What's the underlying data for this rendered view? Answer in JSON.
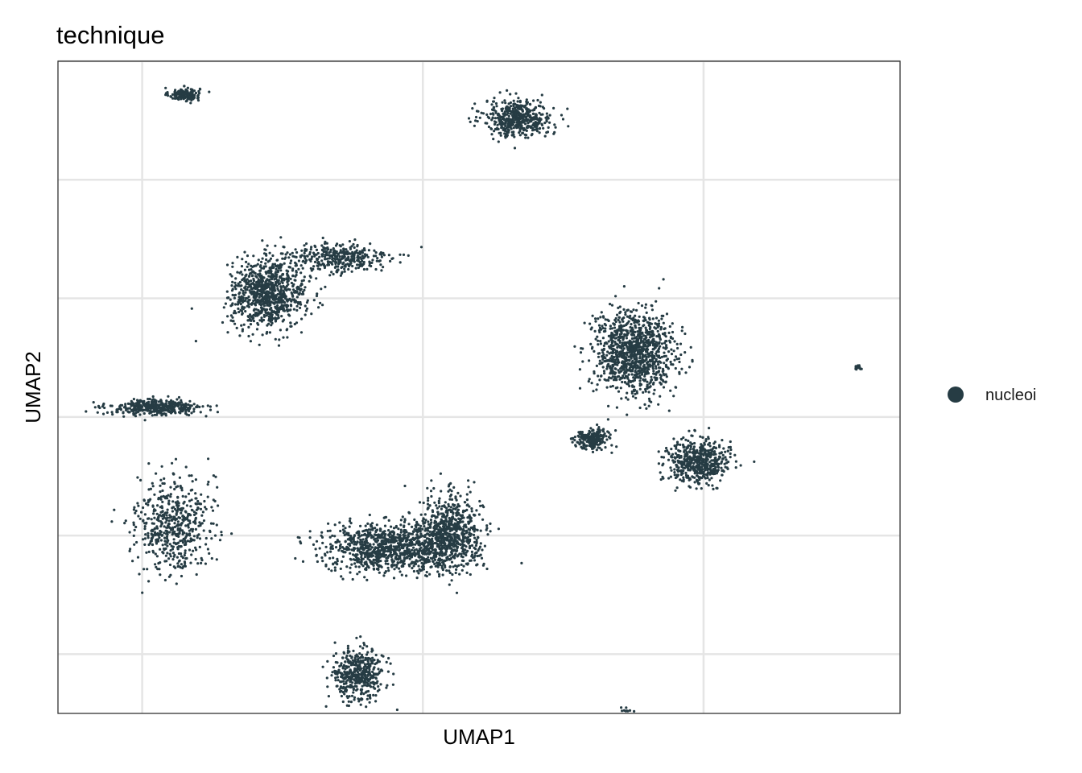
{
  "chart_data": {
    "type": "scatter",
    "title": "technique",
    "xlabel": "UMAP1",
    "ylabel": "UMAP2",
    "xlim": [
      -13,
      17
    ],
    "ylim": [
      -12.5,
      15
    ],
    "x_gridlines": [
      -10,
      0,
      10
    ],
    "y_gridlines": [
      -10,
      -5,
      0,
      5,
      10,
      15
    ],
    "tick_labels_visible": false,
    "grid": true,
    "legend_position": "right",
    "point_color": "#263C44",
    "series": [
      {
        "name": "nucleoi",
        "clusters": [
          {
            "cx": -8.5,
            "cy": 13.6,
            "sx": 0.5,
            "sy": 0.25,
            "n": 150
          },
          {
            "cx": 3.4,
            "cy": 12.6,
            "sx": 1.1,
            "sy": 0.7,
            "n": 500
          },
          {
            "cx": -5.5,
            "cy": 5.2,
            "sx": 1.2,
            "sy": 1.3,
            "n": 900
          },
          {
            "cx": -3.0,
            "cy": 6.7,
            "sx": 1.7,
            "sy": 0.6,
            "n": 350
          },
          {
            "cx": -9.5,
            "cy": 0.4,
            "sx": 1.5,
            "sy": 0.3,
            "n": 400
          },
          {
            "cx": -8.9,
            "cy": -4.5,
            "sx": 1.2,
            "sy": 1.8,
            "n": 550
          },
          {
            "cx": -1.0,
            "cy": -5.5,
            "sx": 2.2,
            "sy": 0.9,
            "n": 1100
          },
          {
            "cx": 1.0,
            "cy": -4.8,
            "sx": 1.0,
            "sy": 1.4,
            "n": 600
          },
          {
            "cx": -2.3,
            "cy": -10.9,
            "sx": 0.8,
            "sy": 1.0,
            "n": 450
          },
          {
            "cx": 7.5,
            "cy": 2.7,
            "sx": 1.3,
            "sy": 1.6,
            "n": 1100
          },
          {
            "cx": 9.8,
            "cy": -1.9,
            "sx": 1.0,
            "sy": 0.8,
            "n": 550
          },
          {
            "cx": 6.0,
            "cy": -0.9,
            "sx": 0.6,
            "sy": 0.4,
            "n": 200
          },
          {
            "cx": 15.5,
            "cy": 2.1,
            "sx": 0.12,
            "sy": 0.08,
            "n": 20
          },
          {
            "cx": 7.3,
            "cy": -12.5,
            "sx": 0.35,
            "sy": 0.15,
            "n": 40
          }
        ]
      }
    ]
  }
}
